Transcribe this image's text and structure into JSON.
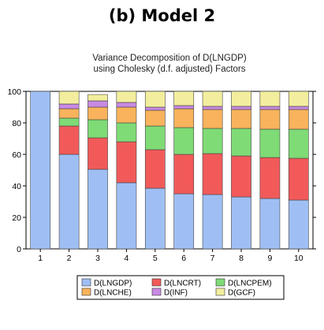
{
  "heading": "(b) Model 2",
  "chart_data": {
    "type": "bar",
    "stacked": true,
    "title_line1": "Variance Decomposition of D(LNGDP)",
    "title_line2": "using Cholesky (d.f. adjusted) Factors",
    "categories": [
      "1",
      "2",
      "3",
      "4",
      "5",
      "6",
      "7",
      "8",
      "9",
      "10"
    ],
    "ylim": [
      0,
      100
    ],
    "yticks": [
      0,
      20,
      40,
      60,
      80,
      100
    ],
    "legend_position": "bottom",
    "grid": false,
    "series": [
      {
        "name": "D(LNGDP)",
        "color": "#9fbff4",
        "values": [
          100,
          60,
          50.5,
          42,
          38.5,
          35,
          34.5,
          33,
          32,
          31
        ]
      },
      {
        "name": "D(LNCRT)",
        "color": "#f25a5a",
        "values": [
          0,
          18,
          20,
          26,
          24.5,
          25,
          26,
          26,
          26,
          26.5
        ]
      },
      {
        "name": "D(LNCPEM)",
        "color": "#7fdb76",
        "values": [
          0,
          5,
          11.5,
          12,
          15,
          17,
          16,
          17.5,
          18,
          18.5
        ]
      },
      {
        "name": "D(LNCHE)",
        "color": "#f8b35c",
        "values": [
          0,
          6,
          8,
          10,
          10,
          12,
          12,
          12,
          12.5,
          12.5
        ]
      },
      {
        "name": "D(INF)",
        "color": "#c98ae4",
        "values": [
          0,
          3,
          4,
          3,
          2,
          2,
          2,
          2,
          2,
          2
        ]
      },
      {
        "name": "D(GCF)",
        "color": "#f3ee9e",
        "values": [
          0,
          8,
          4,
          7,
          10,
          9,
          9.5,
          9.5,
          9.5,
          9.5
        ]
      }
    ]
  }
}
